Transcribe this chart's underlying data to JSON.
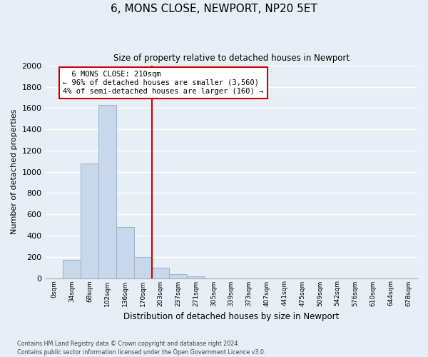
{
  "title": "6, MONS CLOSE, NEWPORT, NP20 5ET",
  "subtitle": "Size of property relative to detached houses in Newport",
  "xlabel": "Distribution of detached houses by size in Newport",
  "ylabel": "Number of detached properties",
  "bar_color": "#c8d8ea",
  "bar_edge_color": "#9ab8d4",
  "bin_labels": [
    "0sqm",
    "34sqm",
    "68sqm",
    "102sqm",
    "136sqm",
    "170sqm",
    "203sqm",
    "237sqm",
    "271sqm",
    "305sqm",
    "339sqm",
    "373sqm",
    "407sqm",
    "441sqm",
    "475sqm",
    "509sqm",
    "542sqm",
    "576sqm",
    "610sqm",
    "644sqm",
    "678sqm"
  ],
  "bar_values": [
    0,
    170,
    1080,
    1630,
    480,
    200,
    100,
    35,
    20,
    0,
    0,
    0,
    0,
    0,
    0,
    0,
    0,
    0,
    0,
    0,
    0
  ],
  "ylim": [
    0,
    2000
  ],
  "yticks": [
    0,
    200,
    400,
    600,
    800,
    1000,
    1200,
    1400,
    1600,
    1800,
    2000
  ],
  "vline_x_index": 6,
  "vline_color": "#cc0000",
  "annotation_title": "6 MONS CLOSE: 210sqm",
  "annotation_line1": "← 96% of detached houses are smaller (3,560)",
  "annotation_line2": "4% of semi-detached houses are larger (160) →",
  "annotation_box_color": "#ffffff",
  "annotation_box_edge": "#cc0000",
  "footer_line1": "Contains HM Land Registry data © Crown copyright and database right 2024.",
  "footer_line2": "Contains public sector information licensed under the Open Government Licence v3.0.",
  "background_color": "#e8eef5",
  "grid_color": "#ffffff"
}
